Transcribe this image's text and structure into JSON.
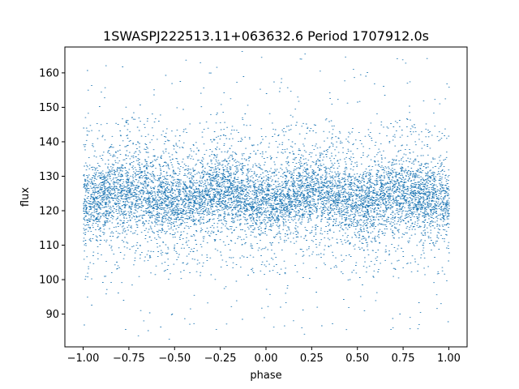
{
  "chart_data": {
    "type": "scatter",
    "title": "1SWASPJ222513.11+063632.6 Period 1707912.0s",
    "xlabel": "phase",
    "ylabel": "flux",
    "xlim": [
      -1.1,
      1.1
    ],
    "ylim": [
      80.5,
      167.5
    ],
    "xticks": [
      -1.0,
      -0.75,
      -0.5,
      -0.25,
      0.0,
      0.25,
      0.5,
      0.75,
      1.0
    ],
    "xtick_labels": [
      "−1.00",
      "−0.75",
      "−0.50",
      "−0.25",
      "0.00",
      "0.25",
      "0.50",
      "0.75",
      "1.00"
    ],
    "yticks": [
      90,
      100,
      110,
      120,
      130,
      140,
      150,
      160
    ],
    "ytick_labels": [
      "90",
      "100",
      "110",
      "120",
      "130",
      "140",
      "150",
      "160"
    ],
    "grid": false,
    "legend": "none",
    "point_color": "#1f77b4",
    "series": [
      {
        "points_described": "dense symmetric light curve over phase -1 to 1",
        "x_range": [
          -1.0,
          1.0
        ],
        "y_center": 124,
        "y_core_range": [
          108,
          140
        ],
        "y_outlier_range": [
          84,
          165
        ]
      }
    ]
  }
}
